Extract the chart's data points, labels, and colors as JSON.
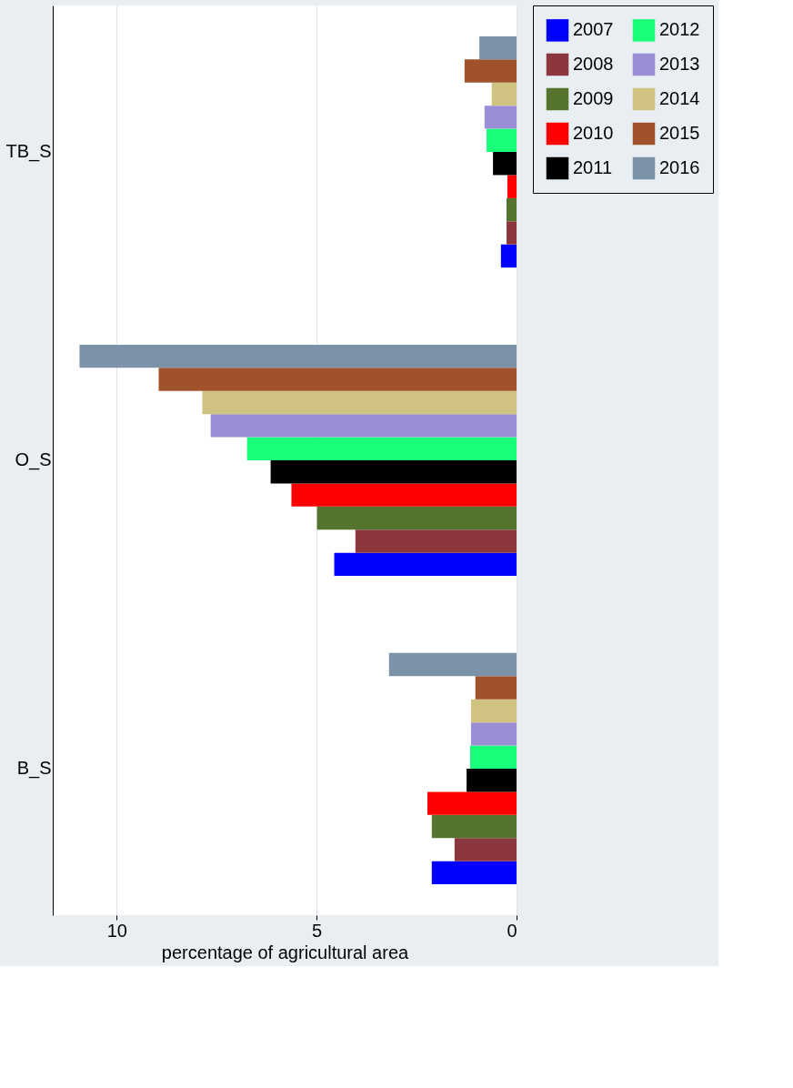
{
  "chart_data": {
    "type": "bar",
    "orientation": "horizontal",
    "xlabel": "percentage of agricultural area",
    "categories": [
      "TB_S",
      "O_S",
      "B_S"
    ],
    "series": [
      {
        "name": "2007",
        "color": "#0000ff",
        "values": [
          0.39,
          4.56,
          2.12
        ]
      },
      {
        "name": "2008",
        "color": "#8c363e",
        "values": [
          0.25,
          4.03,
          1.55
        ]
      },
      {
        "name": "2009",
        "color": "#55752f",
        "values": [
          0.25,
          4.99,
          2.12
        ]
      },
      {
        "name": "2010",
        "color": "#ff0000",
        "values": [
          0.23,
          5.63,
          2.23
        ]
      },
      {
        "name": "2011",
        "color": "#000000",
        "values": [
          0.59,
          6.15,
          1.25
        ]
      },
      {
        "name": "2012",
        "color": "#1aff7a",
        "values": [
          0.75,
          6.74,
          1.16
        ]
      },
      {
        "name": "2013",
        "color": "#9a8fd6",
        "values": [
          0.8,
          7.65,
          1.14
        ]
      },
      {
        "name": "2014",
        "color": "#d0c382",
        "values": [
          0.62,
          7.86,
          1.14
        ]
      },
      {
        "name": "2015",
        "color": "#a0522d",
        "values": [
          1.3,
          8.95,
          1.03
        ]
      },
      {
        "name": "2016",
        "color": "#7b92a8",
        "values": [
          0.93,
          10.93,
          3.19
        ]
      }
    ],
    "xlim": [
      11.6,
      0
    ],
    "xticks": [
      0,
      5,
      10
    ],
    "grid": "x",
    "legend": "right"
  }
}
